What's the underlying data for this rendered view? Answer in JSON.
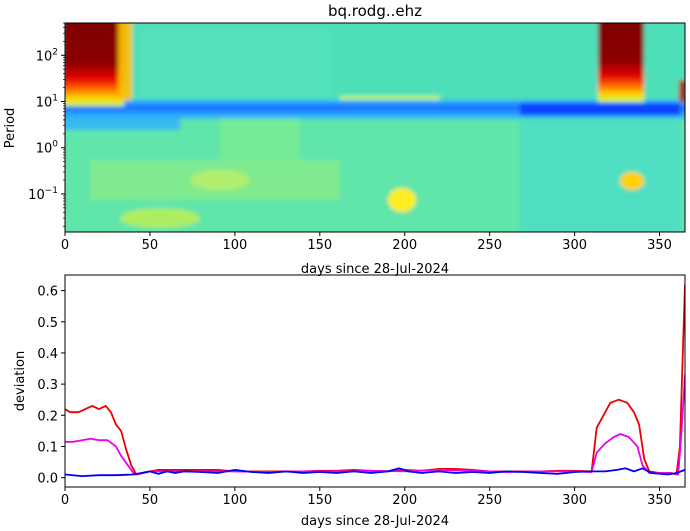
{
  "figure_title": "bq.rodg..ehz",
  "chart_data": [
    {
      "type": "heatmap",
      "title": "bq.rodg..ehz",
      "xlabel": "days since 28-Jul-2024",
      "ylabel": "Period",
      "xlim": [
        0,
        365
      ],
      "ylim": [
        0.015,
        500
      ],
      "y_scale": "log",
      "x_ticks": [
        0,
        50,
        100,
        150,
        200,
        250,
        300,
        350
      ],
      "x_tick_labels": [
        "0",
        "50",
        "100",
        "150",
        "200",
        "250",
        "300",
        "350"
      ],
      "y_ticks": [
        0.1,
        1,
        10,
        100
      ],
      "y_tick_labels": [
        {
          "base": "10",
          "exp": "−1"
        },
        {
          "base": "10",
          "exp": "0"
        },
        {
          "base": "10",
          "exp": "1"
        },
        {
          "base": "10",
          "exp": "2"
        }
      ],
      "colormap": "jet",
      "features": [
        {
          "x_range": [
            0,
            37
          ],
          "period_range": [
            12,
            500
          ],
          "level": "high",
          "description_color": "#800000"
        },
        {
          "x_range": [
            312,
            343
          ],
          "period_range": [
            14,
            500
          ],
          "level": "high",
          "description_color": "#800000"
        },
        {
          "x_range": [
            0,
            365
          ],
          "period_range": [
            3,
            9
          ],
          "level": "low",
          "description_color": "#0050ff"
        },
        {
          "x_range": [
            190,
            205
          ],
          "period_range": [
            0.05,
            0.15
          ],
          "level": "elevated",
          "description_color": "#ffff00"
        }
      ]
    },
    {
      "type": "line",
      "xlabel": "days since 28-Jul-2024",
      "ylabel": "deviation",
      "xlim": [
        0,
        365
      ],
      "ylim": [
        -0.03,
        0.65
      ],
      "x_ticks": [
        0,
        50,
        100,
        150,
        200,
        250,
        300,
        350
      ],
      "x_tick_labels": [
        "0",
        "50",
        "100",
        "150",
        "200",
        "250",
        "300",
        "350"
      ],
      "y_ticks": [
        0.0,
        0.1,
        0.2,
        0.3,
        0.4,
        0.5,
        0.6
      ],
      "y_tick_labels": [
        "0.0",
        "0.1",
        "0.2",
        "0.3",
        "0.4",
        "0.5",
        "0.6"
      ],
      "series": [
        {
          "color": "#ee0000",
          "points": [
            [
              0,
              0.22
            ],
            [
              3,
              0.21
            ],
            [
              8,
              0.21
            ],
            [
              12,
              0.22
            ],
            [
              16,
              0.23
            ],
            [
              20,
              0.22
            ],
            [
              24,
              0.23
            ],
            [
              27,
              0.21
            ],
            [
              30,
              0.17
            ],
            [
              33,
              0.15
            ],
            [
              36,
              0.09
            ],
            [
              39,
              0.04
            ],
            [
              42,
              0.01
            ],
            [
              46,
              0.015
            ],
            [
              50,
              0.02
            ],
            [
              55,
              0.025
            ],
            [
              60,
              0.025
            ],
            [
              70,
              0.025
            ],
            [
              80,
              0.025
            ],
            [
              90,
              0.025
            ],
            [
              100,
              0.02
            ],
            [
              110,
              0.02
            ],
            [
              120,
              0.02
            ],
            [
              130,
              0.02
            ],
            [
              140,
              0.02
            ],
            [
              150,
              0.022
            ],
            [
              160,
              0.022
            ],
            [
              170,
              0.025
            ],
            [
              180,
              0.022
            ],
            [
              190,
              0.02
            ],
            [
              200,
              0.025
            ],
            [
              210,
              0.022
            ],
            [
              220,
              0.028
            ],
            [
              230,
              0.028
            ],
            [
              240,
              0.025
            ],
            [
              250,
              0.02
            ],
            [
              260,
              0.02
            ],
            [
              270,
              0.02
            ],
            [
              280,
              0.02
            ],
            [
              290,
              0.022
            ],
            [
              300,
              0.022
            ],
            [
              310,
              0.02
            ],
            [
              313,
              0.16
            ],
            [
              317,
              0.2
            ],
            [
              321,
              0.24
            ],
            [
              326,
              0.25
            ],
            [
              331,
              0.24
            ],
            [
              335,
              0.21
            ],
            [
              338,
              0.17
            ],
            [
              341,
              0.06
            ],
            [
              344,
              0.02
            ],
            [
              350,
              0.015
            ],
            [
              357,
              0.015
            ],
            [
              360,
              0.01
            ],
            [
              362,
              0.1
            ],
            [
              364,
              0.45
            ],
            [
              365,
              0.62
            ]
          ]
        },
        {
          "color": "#ee00ee",
          "points": [
            [
              0,
              0.115
            ],
            [
              5,
              0.115
            ],
            [
              10,
              0.12
            ],
            [
              15,
              0.125
            ],
            [
              20,
              0.12
            ],
            [
              25,
              0.12
            ],
            [
              30,
              0.1
            ],
            [
              33,
              0.07
            ],
            [
              37,
              0.04
            ],
            [
              41,
              0.01
            ],
            [
              46,
              0.015
            ],
            [
              50,
              0.02
            ],
            [
              60,
              0.02
            ],
            [
              80,
              0.02
            ],
            [
              100,
              0.02
            ],
            [
              120,
              0.018
            ],
            [
              140,
              0.02
            ],
            [
              160,
              0.02
            ],
            [
              180,
              0.022
            ],
            [
              200,
              0.02
            ],
            [
              220,
              0.025
            ],
            [
              240,
              0.022
            ],
            [
              260,
              0.018
            ],
            [
              280,
              0.02
            ],
            [
              300,
              0.02
            ],
            [
              310,
              0.018
            ],
            [
              313,
              0.08
            ],
            [
              318,
              0.11
            ],
            [
              323,
              0.13
            ],
            [
              327,
              0.14
            ],
            [
              332,
              0.13
            ],
            [
              337,
              0.1
            ],
            [
              340,
              0.04
            ],
            [
              344,
              0.015
            ],
            [
              355,
              0.015
            ],
            [
              361,
              0.01
            ],
            [
              363,
              0.15
            ],
            [
              365,
              0.33
            ]
          ]
        },
        {
          "color": "#0000ee",
          "points": [
            [
              0,
              0.01
            ],
            [
              10,
              0.005
            ],
            [
              20,
              0.008
            ],
            [
              30,
              0.008
            ],
            [
              40,
              0.01
            ],
            [
              45,
              0.015
            ],
            [
              50,
              0.02
            ],
            [
              55,
              0.012
            ],
            [
              60,
              0.02
            ],
            [
              65,
              0.015
            ],
            [
              70,
              0.02
            ],
            [
              80,
              0.018
            ],
            [
              90,
              0.015
            ],
            [
              95,
              0.02
            ],
            [
              100,
              0.025
            ],
            [
              110,
              0.018
            ],
            [
              120,
              0.015
            ],
            [
              130,
              0.02
            ],
            [
              140,
              0.015
            ],
            [
              150,
              0.018
            ],
            [
              160,
              0.015
            ],
            [
              170,
              0.02
            ],
            [
              180,
              0.015
            ],
            [
              190,
              0.02
            ],
            [
              197,
              0.03
            ],
            [
              202,
              0.02
            ],
            [
              210,
              0.015
            ],
            [
              220,
              0.02
            ],
            [
              230,
              0.015
            ],
            [
              240,
              0.018
            ],
            [
              250,
              0.015
            ],
            [
              260,
              0.02
            ],
            [
              270,
              0.018
            ],
            [
              280,
              0.015
            ],
            [
              290,
              0.012
            ],
            [
              300,
              0.018
            ],
            [
              310,
              0.02
            ],
            [
              318,
              0.02
            ],
            [
              325,
              0.025
            ],
            [
              330,
              0.03
            ],
            [
              335,
              0.02
            ],
            [
              340,
              0.03
            ],
            [
              345,
              0.015
            ],
            [
              355,
              0.01
            ],
            [
              360,
              0.015
            ],
            [
              365,
              0.025
            ]
          ]
        }
      ]
    }
  ]
}
